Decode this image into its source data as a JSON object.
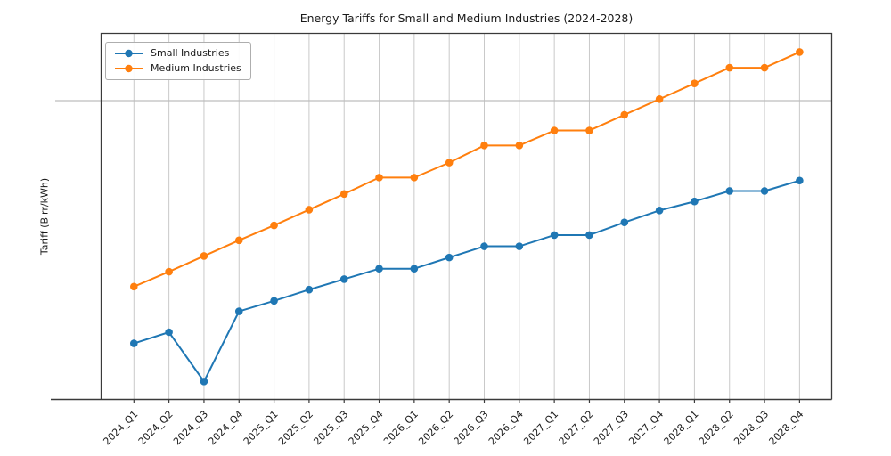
{
  "chart_data": {
    "type": "line",
    "title": "Energy Tariffs for Small and Medium Industries (2024-2028)",
    "xlabel": "",
    "ylabel": "Tariff (Birr/kWh)",
    "categories": [
      "2024_Q1",
      "2024_Q2",
      "2024_Q3",
      "2024_Q4",
      "2025_Q1",
      "2025_Q2",
      "2025_Q3",
      "2025_Q4",
      "2026_Q1",
      "2026_Q2",
      "2026_Q3",
      "2026_Q4",
      "2027_Q1",
      "2027_Q2",
      "2027_Q3",
      "2027_Q4",
      "2028_Q1",
      "2028_Q2",
      "2028_Q3",
      "2028_Q4"
    ],
    "series": [
      {
        "name": "Small Industries",
        "color": "#1f77b4",
        "marker": "circle",
        "values": [
          2.75,
          2.9,
          2.24,
          3.18,
          3.32,
          3.47,
          3.61,
          3.75,
          3.75,
          3.9,
          4.05,
          4.05,
          4.2,
          4.2,
          4.37,
          4.53,
          4.65,
          4.79,
          4.79,
          4.93
        ]
      },
      {
        "name": "Medium Industries",
        "color": "#ff7f0e",
        "marker": "circle",
        "values": [
          3.51,
          3.71,
          3.92,
          4.13,
          4.33,
          4.54,
          4.75,
          4.97,
          4.97,
          5.17,
          5.4,
          5.4,
          5.6,
          5.6,
          5.81,
          6.02,
          6.23,
          6.44,
          6.44,
          6.65
        ]
      }
    ],
    "ylim": [
      2.0,
      6.9
    ],
    "y_gridline_values": [
      6.0
    ],
    "y_tick_labels_shown": false,
    "grid": "vertical gridline at every category; one horizontal gridline",
    "legend_position": "upper-left",
    "x_tick_label_rotation_deg": 45
  },
  "colors": {
    "grid_vertical": "#c9c9c9",
    "grid_horizontal": "#bdbdbd",
    "spine": "#3a3a3a",
    "tick": "#3a3a3a",
    "text": "#1a1a1a",
    "background": "#ffffff"
  }
}
